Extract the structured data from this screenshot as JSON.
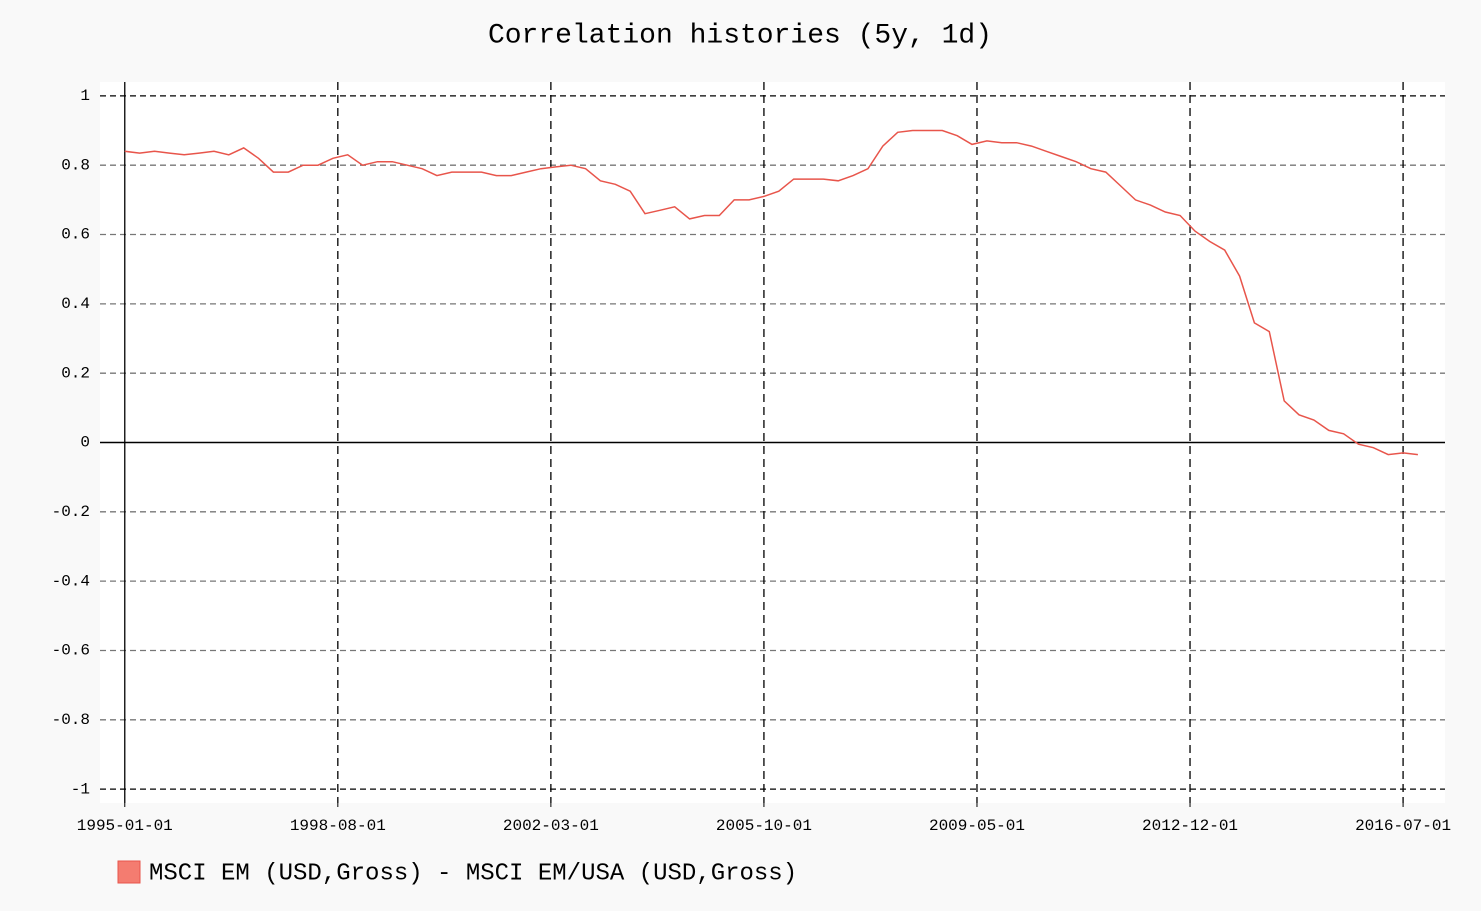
{
  "chart_data": {
    "type": "line",
    "title": "Correlation histories (5y, 1d)",
    "x": [
      "1995-01-01",
      "1995-04-01",
      "1995-07-01",
      "1995-10-01",
      "1996-01-01",
      "1996-04-01",
      "1996-07-01",
      "1996-10-01",
      "1997-01-01",
      "1997-04-01",
      "1997-07-01",
      "1997-10-01",
      "1998-01-01",
      "1998-04-01",
      "1998-07-01",
      "1998-10-01",
      "1999-01-01",
      "1999-04-01",
      "1999-07-01",
      "1999-10-01",
      "2000-01-01",
      "2000-04-01",
      "2000-07-01",
      "2000-10-01",
      "2001-01-01",
      "2001-04-01",
      "2001-07-01",
      "2001-10-01",
      "2002-01-01",
      "2002-04-01",
      "2002-07-01",
      "2002-10-01",
      "2003-01-01",
      "2003-04-01",
      "2003-07-01",
      "2003-10-01",
      "2004-01-01",
      "2004-04-01",
      "2004-07-01",
      "2004-10-01",
      "2005-01-01",
      "2005-04-01",
      "2005-07-01",
      "2005-10-01",
      "2006-01-01",
      "2006-04-01",
      "2006-07-01",
      "2006-10-01",
      "2007-01-01",
      "2007-04-01",
      "2007-07-01",
      "2007-10-01",
      "2008-01-01",
      "2008-04-01",
      "2008-07-01",
      "2008-10-01",
      "2009-01-01",
      "2009-04-01",
      "2009-07-01",
      "2009-10-01",
      "2010-01-01",
      "2010-04-01",
      "2010-07-01",
      "2010-10-01",
      "2011-01-01",
      "2011-04-01",
      "2011-07-01",
      "2011-10-01",
      "2012-01-01",
      "2012-04-01",
      "2012-07-01",
      "2012-10-01",
      "2013-01-01",
      "2013-04-01",
      "2013-07-01",
      "2013-10-01",
      "2014-01-01",
      "2014-04-01",
      "2014-07-01",
      "2014-10-01",
      "2015-01-01",
      "2015-04-01",
      "2015-07-01",
      "2015-10-01",
      "2016-01-01",
      "2016-04-01",
      "2016-07-01",
      "2016-10-01"
    ],
    "series": [
      {
        "name": "MSCI EM (USD,Gross) - MSCI EM/USA (USD,Gross)",
        "color": "#e8554b",
        "values": [
          0.84,
          0.835,
          0.84,
          0.835,
          0.83,
          0.835,
          0.84,
          0.83,
          0.85,
          0.82,
          0.78,
          0.78,
          0.8,
          0.8,
          0.82,
          0.83,
          0.8,
          0.81,
          0.81,
          0.8,
          0.79,
          0.77,
          0.78,
          0.78,
          0.78,
          0.77,
          0.77,
          0.78,
          0.79,
          0.795,
          0.8,
          0.79,
          0.755,
          0.745,
          0.725,
          0.66,
          0.67,
          0.68,
          0.645,
          0.655,
          0.655,
          0.7,
          0.7,
          0.71,
          0.725,
          0.76,
          0.76,
          0.76,
          0.755,
          0.77,
          0.79,
          0.855,
          0.895,
          0.9,
          0.9,
          0.9,
          0.885,
          0.86,
          0.87,
          0.865,
          0.865,
          0.855,
          0.84,
          0.825,
          0.81,
          0.79,
          0.78,
          0.74,
          0.7,
          0.685,
          0.665,
          0.655,
          0.61,
          0.58,
          0.555,
          0.48,
          0.345,
          0.32,
          0.12,
          0.08,
          0.065,
          0.035,
          0.025,
          -0.005,
          -0.015,
          -0.035,
          -0.03,
          -0.035
        ]
      }
    ],
    "xlim": [
      "1994-08-01",
      "2017-03-15"
    ],
    "xticks": [
      "1995-01-01",
      "1998-08-01",
      "2002-03-01",
      "2005-10-01",
      "2009-05-01",
      "2012-12-01",
      "2016-07-01"
    ],
    "ylim": [
      -1.04,
      1.04
    ],
    "yticks": [
      -1,
      -0.8,
      -0.6,
      -0.4,
      -0.2,
      0,
      0.2,
      0.4,
      0.6,
      0.8,
      1
    ],
    "grid": true,
    "legend": "bottom"
  }
}
